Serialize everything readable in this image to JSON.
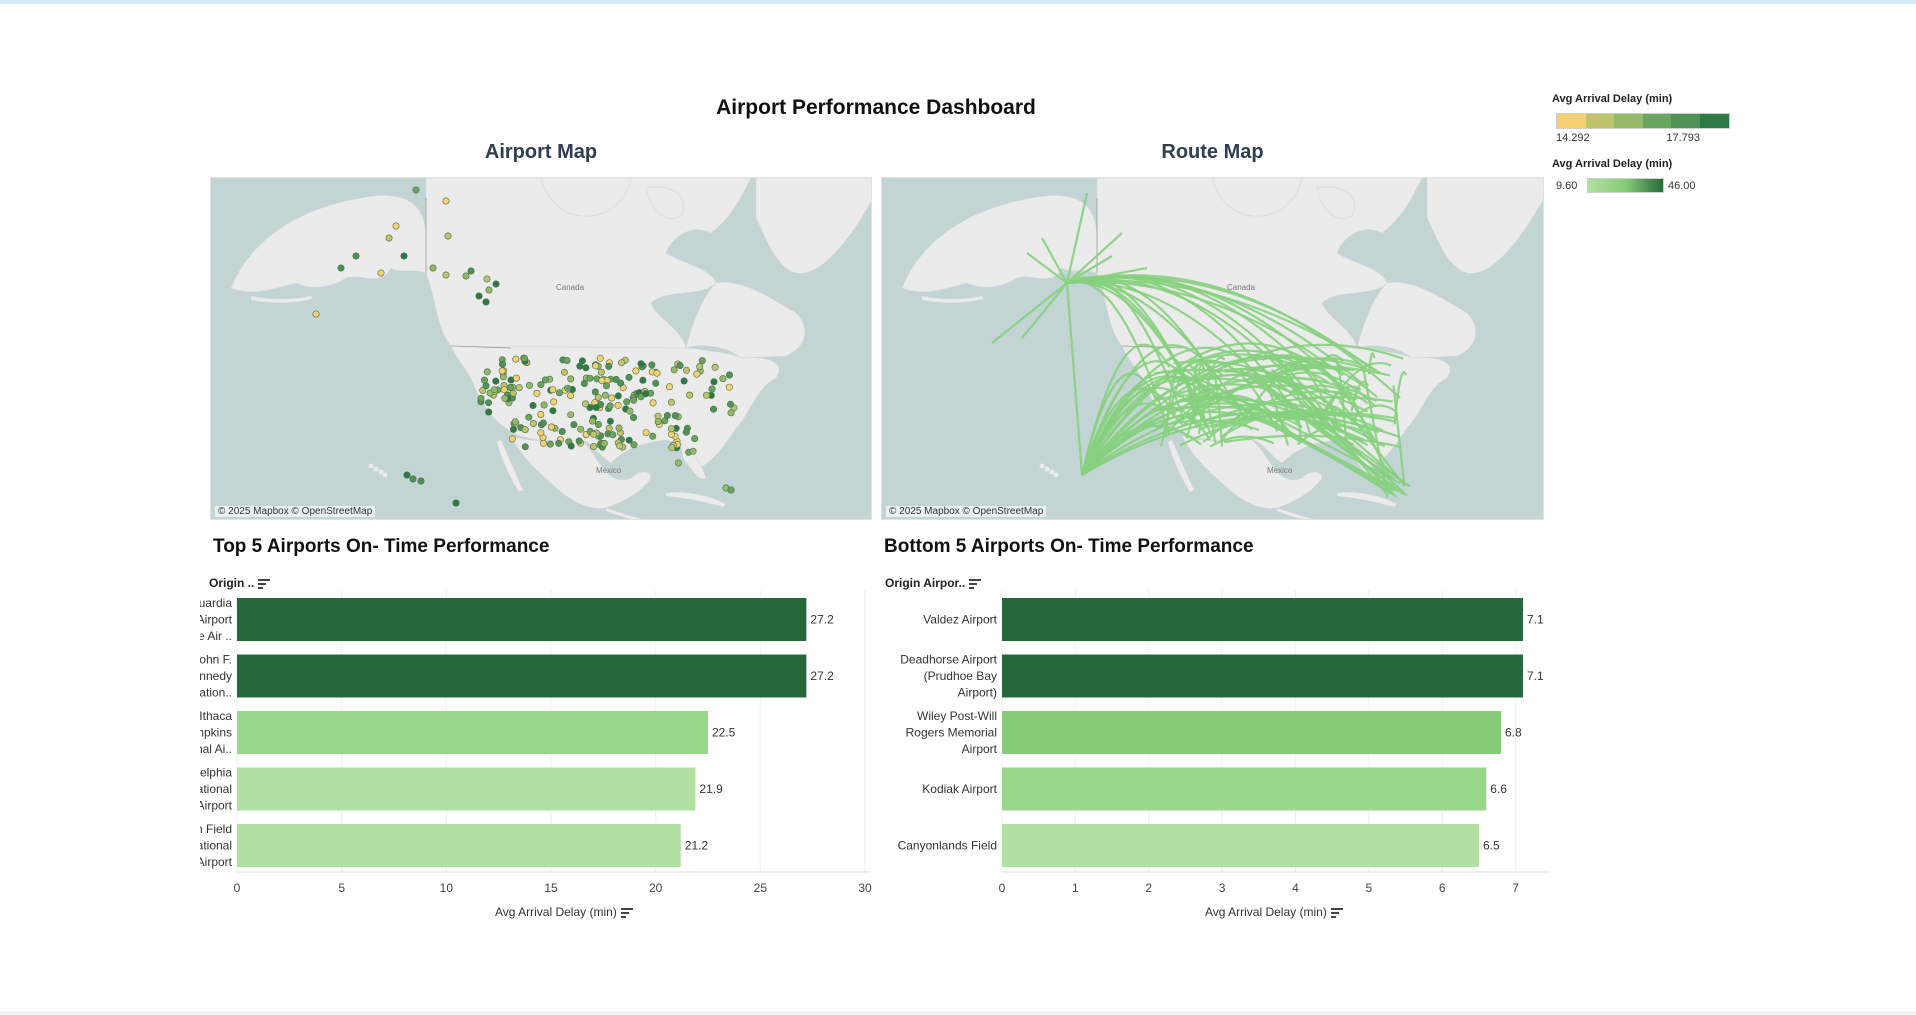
{
  "dashboard": {
    "title": "Airport Performance Dashboard"
  },
  "colors": {
    "land": "#ebebeb",
    "water": "#c3d4d4",
    "route_line": "#86d07e",
    "bar_scale": [
      "#b2e0a2",
      "#99d78a",
      "#86cc76",
      "#62a956",
      "#266a3b"
    ],
    "airport_scale": [
      "#f4d06f",
      "#bfc36b",
      "#94b968",
      "#6aa55f",
      "#4f9256",
      "#2e7a45"
    ]
  },
  "airport_map": {
    "title": "Airport Map",
    "attribution": "© 2025 Mapbox © OpenStreetMap",
    "labels": [
      "Canada",
      "Mexico"
    ]
  },
  "route_map": {
    "title": "Route Map",
    "attribution": "© 2025 Mapbox © OpenStreetMap",
    "labels": [
      "Canada",
      "Mexico"
    ]
  },
  "legends": {
    "airport_color": {
      "title": "Avg Arrival Delay (min)",
      "min": "14.292",
      "max": "17.793"
    },
    "route_color": {
      "title": "Avg Arrival Delay (min)",
      "min": "9.60",
      "max": "46.00"
    }
  },
  "chart_data": [
    {
      "type": "bar",
      "orientation": "horizontal",
      "title": "Top 5 Airports On- Time Performance",
      "field_label": "Origin ..",
      "categories": [
        [
          "LaGuardia",
          "Airport",
          "(Marine Air .."
        ],
        [
          "John F.",
          "Kennedy",
          "Internation.."
        ],
        [
          "Ithaca",
          "Tompkins",
          "Regional Ai.."
        ],
        [
          "Philadelphia",
          "International",
          "Airport"
        ],
        [
          "Sloulin Field",
          "International",
          "Airport"
        ]
      ],
      "values": [
        27.2,
        27.2,
        22.5,
        21.9,
        21.2
      ],
      "value_labels": [
        "27.2",
        "27.2",
        "22.5",
        "21.9",
        "21.2"
      ],
      "xlabel": "Avg Arrival Delay (min)",
      "xlim": [
        0,
        30
      ],
      "ticks": [
        0,
        5,
        10,
        15,
        20,
        25,
        30
      ],
      "grid": true
    },
    {
      "type": "bar",
      "orientation": "horizontal",
      "title": "Bottom 5 Airports On- Time Performance",
      "field_label": "Origin Airpor..",
      "categories": [
        [
          "Valdez Airport"
        ],
        [
          "Deadhorse Airport",
          "(Prudhoe Bay",
          "Airport)"
        ],
        [
          "Wiley Post-Will",
          "Rogers Memorial",
          "Airport"
        ],
        [
          "Kodiak Airport"
        ],
        [
          "Canyonlands Field"
        ]
      ],
      "values": [
        7.1,
        7.1,
        6.8,
        6.6,
        6.5
      ],
      "value_labels": [
        "7.1",
        "7.1",
        "6.8",
        "6.6",
        "6.5"
      ],
      "xlabel": "Avg Arrival Delay (min)",
      "xlim": [
        0,
        7.4
      ],
      "ticks": [
        0,
        1,
        2,
        3,
        4,
        5,
        6,
        7
      ],
      "grid": true
    }
  ]
}
